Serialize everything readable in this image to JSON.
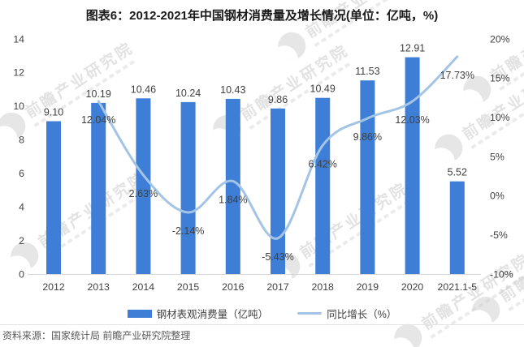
{
  "title": "图表6：2012-2021年中国钢材消费量及增长情况(单位：亿吨，%)",
  "source": "资料来源：国家统计局 前瞻产业研究院整理",
  "watermark": {
    "text": "前瞻产业研究院"
  },
  "legend": {
    "items": [
      {
        "label": "钢材表观消费量（亿吨）",
        "swatch": "bar"
      },
      {
        "label": "同比增长（%）",
        "swatch": "line"
      }
    ]
  },
  "colors": {
    "bar": "#3E7ED7",
    "line": "#A3C4E5",
    "label_text": "#404040",
    "axis_text": "#404040",
    "axis_line": "#D8D8D8",
    "watermark": "#C6C6C6"
  },
  "chart_data": {
    "type": "bar",
    "subtype": "bar-line-combo",
    "title": "图表6：2012-2021年中国钢材消费量及增长情况(单位：亿吨，%)",
    "categories": [
      "2012",
      "2013",
      "2014",
      "2015",
      "2016",
      "2017",
      "2018",
      "2019",
      "2020",
      "2021.1-5"
    ],
    "series": [
      {
        "name": "钢材表观消费量（亿吨）",
        "kind": "bar",
        "axis": "left",
        "values": [
          9.1,
          10.19,
          10.46,
          10.24,
          10.43,
          9.86,
          10.49,
          11.53,
          12.91,
          5.52
        ]
      },
      {
        "name": "同比增长（%）",
        "kind": "line",
        "axis": "right",
        "values": [
          null,
          12.04,
          2.63,
          -2.14,
          1.84,
          -5.43,
          6.42,
          9.86,
          12.03,
          17.73
        ]
      }
    ],
    "left_axis": {
      "min": 0,
      "max": 14,
      "step": 2,
      "ticks": [
        0,
        2,
        4,
        6,
        8,
        10,
        12,
        14
      ]
    },
    "right_axis": {
      "min": -10,
      "max": 20,
      "step": 5,
      "suffix": "%",
      "tick_labels": [
        "-10%",
        "-5%",
        "0%",
        "5%",
        "10%",
        "15%",
        "20%"
      ]
    },
    "grid": false,
    "legend_position": "bottom",
    "data_labels": true
  }
}
